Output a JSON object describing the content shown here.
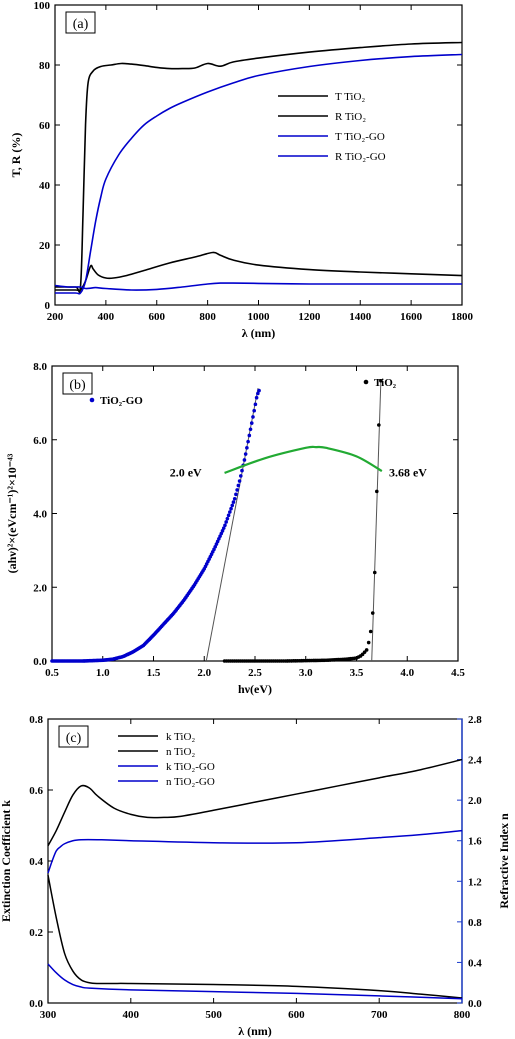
{
  "chart_data": [
    {
      "type": "line",
      "panel_label": "(a)",
      "xlabel": "λ (nm)",
      "ylabel": "T, R (%)",
      "xlim": [
        200,
        1800
      ],
      "ylim": [
        0,
        100
      ],
      "xticks": [
        "200",
        "400",
        "600",
        "800",
        "1000",
        "1200",
        "1400",
        "1600",
        "1800"
      ],
      "yticks": [
        "0",
        "20",
        "40",
        "60",
        "80",
        "100"
      ],
      "legend_position": "center-right",
      "series": [
        {
          "name": "T TiO₂",
          "color": "#000000",
          "x": [
            200,
            280,
            300,
            310,
            320,
            330,
            350,
            380,
            420,
            460,
            500,
            550,
            600,
            650,
            700,
            750,
            800,
            850,
            900,
            1000,
            1200,
            1400,
            1600,
            1800
          ],
          "y": [
            6,
            6,
            6,
            30,
            60,
            74,
            78,
            79.5,
            80,
            80.5,
            80.3,
            79.8,
            79.2,
            78.8,
            78.8,
            79,
            80.5,
            79.6,
            81,
            82.3,
            84.3,
            85.8,
            87,
            87.5
          ]
        },
        {
          "name": "R TiO₂",
          "color": "#000000",
          "x": [
            200,
            280,
            300,
            320,
            340,
            350,
            370,
            400,
            430,
            480,
            550,
            650,
            750,
            820,
            850,
            900,
            1000,
            1200,
            1400,
            1600,
            1800
          ],
          "y": [
            5,
            5,
            5,
            8,
            13,
            12,
            10,
            9,
            9,
            9.8,
            11.5,
            14,
            16,
            17.5,
            16.6,
            15,
            13.3,
            11.8,
            11,
            10.4,
            9.8
          ]
        },
        {
          "name": "T TiO₂-GO",
          "color": "#0000cc",
          "x": [
            200,
            280,
            300,
            320,
            340,
            360,
            380,
            400,
            450,
            500,
            550,
            600,
            650,
            700,
            800,
            900,
            1000,
            1200,
            1400,
            1600,
            1800
          ],
          "y": [
            4,
            4,
            4,
            8,
            18,
            28,
            36,
            42,
            50,
            55.5,
            60,
            63,
            65.5,
            67.5,
            71,
            74,
            76.5,
            79.5,
            81.5,
            82.8,
            83.5
          ]
        },
        {
          "name": "R TiO₂-GO",
          "color": "#0000cc",
          "x": [
            200,
            250,
            300,
            320,
            340,
            360,
            400,
            500,
            600,
            700,
            800,
            850,
            900,
            1000,
            1200,
            1400,
            1600,
            1800
          ],
          "y": [
            6.5,
            6,
            6,
            5.5,
            5.6,
            5.8,
            5.5,
            5,
            5.2,
            6,
            7,
            7.3,
            7.3,
            7.2,
            7,
            7,
            7,
            7
          ]
        }
      ]
    },
    {
      "type": "scatter",
      "panel_label": "(b)",
      "xlabel": "hν(eV)",
      "ylabel": "(ahν)²×(eVcm⁻¹)²×10⁻⁴³",
      "xlim": [
        0.5,
        4.5
      ],
      "ylim": [
        0,
        8
      ],
      "xticks": [
        "0.5",
        "1.0",
        "1.5",
        "2.0",
        "2.5",
        "3.0",
        "3.5",
        "4.0",
        "4.5"
      ],
      "yticks": [
        "0.0",
        "2.0",
        "4.0",
        "6.0",
        "8.0"
      ],
      "legend_position": "top-left and top-right",
      "series": [
        {
          "name": "TiO₂",
          "color": "#000000",
          "x": [
            2.2,
            2.4,
            2.6,
            2.8,
            3.0,
            3.2,
            3.4,
            3.5,
            3.55,
            3.6,
            3.63,
            3.65,
            3.67,
            3.68,
            3.69,
            3.7,
            3.71,
            3.72,
            3.73,
            3.74
          ],
          "y": [
            0,
            0,
            0,
            0,
            0.01,
            0.02,
            0.05,
            0.08,
            0.15,
            0.3,
            0.6,
            1.0,
            1.6,
            2.4,
            3.5,
            4.6,
            5.6,
            6.4,
            7.0,
            7.6
          ]
        },
        {
          "name": "TiO₂-GO",
          "color": "#0000cc",
          "x": [
            0.5,
            0.8,
            1.0,
            1.1,
            1.2,
            1.3,
            1.4,
            1.5,
            1.6,
            1.7,
            1.8,
            1.9,
            2.0,
            2.1,
            2.2,
            2.3,
            2.35,
            2.4,
            2.45,
            2.5,
            2.52,
            2.55
          ],
          "y": [
            0,
            0,
            0.02,
            0.05,
            0.12,
            0.25,
            0.42,
            0.7,
            1.0,
            1.3,
            1.65,
            2.05,
            2.5,
            3.05,
            3.65,
            4.4,
            4.9,
            5.5,
            6.2,
            6.9,
            7.2,
            7.4
          ]
        }
      ],
      "fit_lines": [
        {
          "x": [
            2.02,
            2.53
          ],
          "y": [
            0,
            7.4
          ]
        },
        {
          "x": [
            3.65,
            3.74
          ],
          "y": [
            0,
            7.6
          ]
        }
      ],
      "annotation_curve": {
        "color": "#22aa33",
        "x": [
          2.2,
          2.6,
          3.0,
          3.1,
          3.2,
          3.5,
          3.75
        ],
        "y": [
          5.1,
          5.5,
          5.78,
          5.8,
          5.78,
          5.55,
          5.15
        ]
      },
      "annotations": [
        {
          "text": "2.0 eV",
          "x": 1.66,
          "y": 5.0
        },
        {
          "text": "3.68 eV",
          "x": 3.82,
          "y": 5.0
        }
      ]
    },
    {
      "type": "line",
      "panel_label": "(c)",
      "xlabel": "λ (nm)",
      "ylabel": "Extinction Coefficient k",
      "ylabel_right": "Refractive Index n",
      "xlim": [
        300,
        800
      ],
      "ylim": [
        0,
        0.8
      ],
      "ylim_right": [
        0,
        2.8
      ],
      "xticks": [
        "300",
        "400",
        "500",
        "600",
        "700",
        "800"
      ],
      "yticks": [
        "0.0",
        "0.2",
        "0.4",
        "0.6",
        "0.8"
      ],
      "yticks_right": [
        "0.0",
        "0.4",
        "0.8",
        "1.2",
        "1.6",
        "2.0",
        "2.4",
        "2.8"
      ],
      "legend_position": "top-left",
      "series": [
        {
          "name": "k TiO₂",
          "color": "#000000",
          "axis": "left",
          "x": [
            300,
            310,
            320,
            330,
            340,
            350,
            360,
            380,
            400,
            500,
            600,
            700,
            750,
            800
          ],
          "y": [
            0.36,
            0.24,
            0.14,
            0.09,
            0.065,
            0.057,
            0.055,
            0.055,
            0.055,
            0.052,
            0.047,
            0.035,
            0.025,
            0.014
          ]
        },
        {
          "name": "n TiO₂",
          "color": "#000000",
          "axis": "right",
          "x": [
            300,
            310,
            320,
            330,
            340,
            350,
            360,
            380,
            400,
            420,
            440,
            460,
            500,
            550,
            600,
            650,
            700,
            750,
            800
          ],
          "y": [
            1.55,
            1.7,
            1.88,
            2.05,
            2.14,
            2.12,
            2.04,
            1.92,
            1.86,
            1.83,
            1.83,
            1.84,
            1.9,
            1.98,
            2.06,
            2.14,
            2.22,
            2.3,
            2.4
          ]
        },
        {
          "name": "k TiO₂-GO",
          "color": "#0000cc",
          "axis": "left",
          "x": [
            300,
            310,
            320,
            330,
            340,
            350,
            400,
            500,
            600,
            700,
            800
          ],
          "y": [
            0.11,
            0.085,
            0.065,
            0.052,
            0.045,
            0.042,
            0.037,
            0.032,
            0.027,
            0.02,
            0.012
          ]
        },
        {
          "name": "n TiO₂-GO",
          "color": "#0000cc",
          "axis": "right",
          "x": [
            300,
            305,
            310,
            315,
            320,
            330,
            340,
            360,
            400,
            500,
            600,
            700,
            750,
            800
          ],
          "y": [
            1.28,
            1.4,
            1.5,
            1.54,
            1.57,
            1.6,
            1.61,
            1.61,
            1.6,
            1.58,
            1.58,
            1.63,
            1.66,
            1.7
          ]
        }
      ]
    }
  ]
}
